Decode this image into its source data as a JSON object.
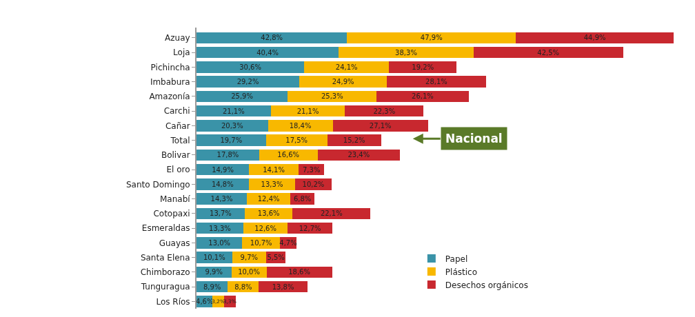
{
  "chart_data": {
    "type": "bar",
    "orientation": "horizontal",
    "stacked": true,
    "categories": [
      "Azuay",
      "Loja",
      "Pichincha",
      "Imbabura",
      "Amazonía",
      "Carchi",
      "Cañar",
      "Total",
      "Bolivar",
      "El oro",
      "Santo Domingo",
      "Manabí",
      "Cotopaxi",
      "Esmeraldas",
      "Guayas",
      "Santa Elena",
      "Chimborazo",
      "Tunguragua",
      "Los Ríos"
    ],
    "series": [
      {
        "name": "Papel",
        "color": "#3a93a8",
        "values": [
          42.8,
          40.4,
          30.6,
          29.2,
          25.9,
          21.1,
          20.3,
          19.7,
          17.8,
          14.9,
          14.8,
          14.3,
          13.7,
          13.3,
          13.0,
          10.1,
          9.9,
          8.9,
          4.6
        ],
        "value_labels": [
          "42,8%",
          "40,4%",
          "30,6%",
          "29,2%",
          "25,9%",
          "21,1%",
          "20,3%",
          "19,7%",
          "17,8%",
          "14,9%",
          "14,8%",
          "14,3%",
          "13,7%",
          "13,3%",
          "13,0%",
          "10,1%",
          "9,9%",
          "8,9%",
          "4,6%"
        ]
      },
      {
        "name": "Plástico",
        "color": "#f8b800",
        "values": [
          47.9,
          38.3,
          24.1,
          24.9,
          25.3,
          21.1,
          18.4,
          17.5,
          16.6,
          14.1,
          13.3,
          12.4,
          13.6,
          12.6,
          10.7,
          9.7,
          10.0,
          8.8,
          3.2
        ],
        "value_labels": [
          "47,9%",
          "38,3%",
          "24,1%",
          "24,9%",
          "25,3%",
          "21,1%",
          "18,4%",
          "17,5%",
          "16,6%",
          "14,1%",
          "13,3%",
          "12,4%",
          "13,6%",
          "12,6%",
          "10,7%",
          "9,7%",
          "10,0%",
          "8,8%",
          "3,2%"
        ]
      },
      {
        "name": "Desechos orgánicos",
        "color": "#c8282f",
        "values": [
          44.9,
          42.5,
          19.2,
          28.1,
          26.1,
          22.3,
          27.1,
          15.2,
          23.4,
          7.3,
          10.2,
          6.8,
          22.1,
          12.7,
          4.7,
          5.5,
          18.6,
          13.8,
          3.3
        ],
        "value_labels": [
          "44,9%",
          "42,5%",
          "19,2%",
          "28,1%",
          "26,1%",
          "22,3%",
          "27,1%",
          "15,2%",
          "23,4%",
          "7,3%",
          "10,2%",
          "6,8%",
          "22,1%",
          "12,7%",
          "4,7%",
          "5,5%",
          "18,6%",
          "13,8%",
          "3,3%"
        ]
      }
    ],
    "annotations": [
      "Nacional"
    ],
    "legend": "bottom"
  }
}
